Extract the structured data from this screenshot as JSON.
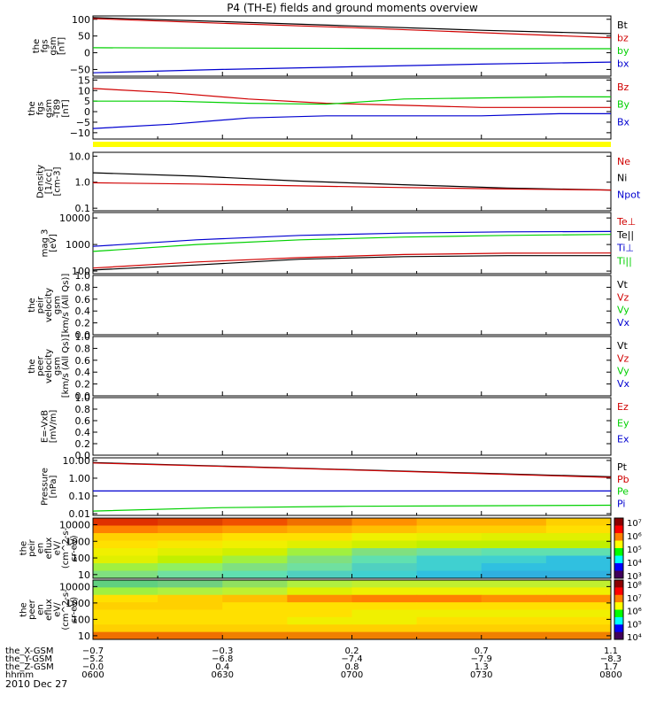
{
  "title": "P4 (TH-E) fields and ground moments overview",
  "date_label": "2010 Dec 27",
  "colors": {
    "black": "#000000",
    "red": "#d00000",
    "green": "#00d000",
    "blue": "#0000d0",
    "yellow": "#ffff00"
  },
  "chart_data": [
    {
      "type": "line",
      "ylabel_lines": [
        "the",
        "fgs",
        "gsm",
        "[nT]"
      ],
      "yticks": [
        "100",
        "50",
        "0",
        "−50"
      ],
      "ylim": [
        -70,
        110
      ],
      "legend": [
        {
          "label": "Bt",
          "color": "#000000"
        },
        {
          "label": "bz",
          "color": "#d00000"
        },
        {
          "label": "by",
          "color": "#00d000"
        },
        {
          "label": "bx",
          "color": "#0000d0"
        }
      ],
      "series": [
        {
          "color": "#000000",
          "x": [
            0,
            0.25,
            0.5,
            0.75,
            1
          ],
          "y": [
            105,
            93,
            80,
            67,
            57
          ]
        },
        {
          "color": "#d00000",
          "x": [
            0,
            0.25,
            0.5,
            0.75,
            1
          ],
          "y": [
            102,
            88,
            75,
            60,
            45
          ]
        },
        {
          "color": "#00d000",
          "x": [
            0,
            0.25,
            0.5,
            0.75,
            1
          ],
          "y": [
            15,
            14,
            13,
            12,
            12
          ]
        },
        {
          "color": "#0000d0",
          "x": [
            0,
            0.25,
            0.5,
            0.75,
            1
          ],
          "y": [
            -60,
            -50,
            -42,
            -34,
            -28
          ]
        }
      ]
    },
    {
      "type": "line",
      "ylabel_lines": [
        "the",
        "fgs",
        "gsm",
        "-T89",
        "[nT]"
      ],
      "yticks": [
        "15",
        "10",
        "5",
        "0",
        "−5",
        "−10"
      ],
      "ylim": [
        -13,
        16
      ],
      "legend": [
        {
          "label": "Bz",
          "color": "#d00000"
        },
        {
          "label": "By",
          "color": "#00d000"
        },
        {
          "label": "Bx",
          "color": "#0000d0"
        }
      ],
      "series": [
        {
          "color": "#d00000",
          "x": [
            0,
            0.15,
            0.3,
            0.45,
            0.6,
            0.75,
            0.9,
            1
          ],
          "y": [
            11,
            9,
            6,
            4,
            3,
            2,
            2,
            2
          ]
        },
        {
          "color": "#00d000",
          "x": [
            0,
            0.15,
            0.3,
            0.45,
            0.6,
            0.75,
            0.9,
            1
          ],
          "y": [
            5,
            5,
            4,
            3.5,
            6,
            6.5,
            7,
            7
          ]
        },
        {
          "color": "#0000d0",
          "x": [
            0,
            0.15,
            0.3,
            0.45,
            0.6,
            0.75,
            0.9,
            1
          ],
          "y": [
            -8,
            -6,
            -3,
            -2,
            -2,
            -2,
            -1,
            -1
          ]
        }
      ]
    },
    {
      "type": "log-line",
      "ylabel_lines": [
        "Density",
        "[1/cc]",
        "[cm-3]"
      ],
      "yticks": [
        "10.0",
        "1.0",
        "0.1"
      ],
      "ylim": [
        0.08,
        14
      ],
      "legend": [
        {
          "label": "Ne",
          "color": "#d00000"
        },
        {
          "label": "Ni",
          "color": "#000000"
        },
        {
          "label": "Npot",
          "color": "#0000d0"
        }
      ],
      "series": [
        {
          "color": "#000000",
          "x": [
            0,
            0.2,
            0.4,
            0.6,
            0.8,
            1
          ],
          "y": [
            2.3,
            1.7,
            1.1,
            0.8,
            0.6,
            0.5
          ]
        },
        {
          "color": "#d00000",
          "x": [
            0,
            0.2,
            0.4,
            0.6,
            0.8,
            1
          ],
          "y": [
            0.95,
            0.85,
            0.72,
            0.62,
            0.55,
            0.5
          ]
        }
      ]
    },
    {
      "type": "log-line",
      "ylabel_lines": [
        "mag 3",
        "[eV]"
      ],
      "yticks": [
        "10000",
        "1000",
        "100"
      ],
      "ylim": [
        80,
        16000
      ],
      "legend": [
        {
          "label": "Te⊥",
          "color": "#d00000"
        },
        {
          "label": "Te||",
          "color": "#000000"
        },
        {
          "label": "Ti⊥",
          "color": "#0000d0"
        },
        {
          "label": "Ti||",
          "color": "#00d000"
        }
      ],
      "series": [
        {
          "color": "#0000d0",
          "x": [
            0,
            0.2,
            0.4,
            0.6,
            0.8,
            1
          ],
          "y": [
            850,
            1500,
            2200,
            2700,
            3000,
            3100
          ]
        },
        {
          "color": "#00d000",
          "x": [
            0,
            0.2,
            0.4,
            0.6,
            0.8,
            1
          ],
          "y": [
            550,
            1000,
            1500,
            1900,
            2200,
            2400
          ]
        },
        {
          "color": "#d00000",
          "x": [
            0,
            0.2,
            0.4,
            0.6,
            0.8,
            1
          ],
          "y": [
            130,
            220,
            320,
            420,
            470,
            480
          ]
        },
        {
          "color": "#000000",
          "x": [
            0,
            0.2,
            0.4,
            0.6,
            0.8,
            1
          ],
          "y": [
            110,
            170,
            280,
            350,
            380,
            380
          ]
        }
      ]
    },
    {
      "type": "line",
      "ylabel_lines": [
        "the",
        "peir",
        "velocity",
        "gsm",
        "[km/s (All Qs)]"
      ],
      "yticks": [
        "1.0",
        "0.8",
        "0.6",
        "0.4",
        "0.2",
        "0.0"
      ],
      "ylim": [
        0,
        1
      ],
      "legend": [
        {
          "label": "Vt",
          "color": "#000000"
        },
        {
          "label": "Vz",
          "color": "#d00000"
        },
        {
          "label": "Vy",
          "color": "#00d000"
        },
        {
          "label": "Vx",
          "color": "#0000d0"
        }
      ],
      "series": []
    },
    {
      "type": "line",
      "ylabel_lines": [
        "the",
        "peer",
        "velocity",
        "gsm",
        "[km/s (All Qs)]"
      ],
      "yticks": [
        "1.0",
        "0.8",
        "0.6",
        "0.4",
        "0.2",
        "0.0"
      ],
      "ylim": [
        0,
        1
      ],
      "legend": [
        {
          "label": "Vt",
          "color": "#000000"
        },
        {
          "label": "Vz",
          "color": "#d00000"
        },
        {
          "label": "Vy",
          "color": "#00d000"
        },
        {
          "label": "Vx",
          "color": "#0000d0"
        }
      ],
      "series": []
    },
    {
      "type": "line",
      "ylabel_lines": [
        "E=-VxB",
        "[mV/m]"
      ],
      "yticks": [
        "1.0",
        "0.8",
        "0.6",
        "0.4",
        "0.2",
        "0.0"
      ],
      "ylim": [
        0,
        1
      ],
      "legend": [
        {
          "label": "Ez",
          "color": "#d00000"
        },
        {
          "label": "Ey",
          "color": "#00d000"
        },
        {
          "label": "Ex",
          "color": "#0000d0"
        }
      ],
      "series": []
    },
    {
      "type": "log-line",
      "ylabel_lines": [
        "Pressure",
        "[nPa]"
      ],
      "yticks": [
        "10.00",
        "1.00",
        "0.10",
        "0.01"
      ],
      "ylim": [
        0.008,
        14
      ],
      "legend": [
        {
          "label": "Pt",
          "color": "#000000"
        },
        {
          "label": "Pb",
          "color": "#d00000"
        },
        {
          "label": "Pe",
          "color": "#00d000"
        },
        {
          "label": "Pi",
          "color": "#0000d0"
        }
      ],
      "series": [
        {
          "color": "#000000",
          "x": [
            0,
            0.25,
            0.5,
            0.75,
            1
          ],
          "y": [
            7.5,
            4.8,
            3.0,
            1.9,
            1.2
          ]
        },
        {
          "color": "#d00000",
          "x": [
            0,
            0.25,
            0.5,
            0.75,
            1
          ],
          "y": [
            7.2,
            4.6,
            2.9,
            1.8,
            1.1
          ]
        },
        {
          "color": "#0000d0",
          "x": [
            0,
            0.25,
            0.5,
            0.75,
            1
          ],
          "y": [
            0.19,
            0.19,
            0.19,
            0.19,
            0.19
          ]
        },
        {
          "color": "#00d000",
          "x": [
            0,
            0.25,
            0.5,
            0.75,
            1
          ],
          "y": [
            0.014,
            0.022,
            0.026,
            0.028,
            0.03
          ]
        }
      ]
    },
    {
      "type": "heatmap",
      "ylabel_lines": [
        "the",
        "peir",
        "en",
        "eflux",
        "eV/",
        "(cm^2-s-",
        "sr-eV)"
      ],
      "yticks": [
        "10000",
        "1000",
        "100",
        "10"
      ],
      "ylim": [
        6,
        25000
      ],
      "colorbar_ticks": [
        "10⁷",
        "10⁶",
        "10⁵",
        "10⁴",
        "10³"
      ],
      "cells": [
        [
          "#e03000",
          "#e04000",
          "#f05000",
          "#f07000",
          "#ff9000",
          "#ffb000",
          "#ffb000",
          "#ffd000"
        ],
        [
          "#ff8000",
          "#ff9000",
          "#ffa000",
          "#ffb000",
          "#ffc000",
          "#ffd000",
          "#ffd000",
          "#ffe000"
        ],
        [
          "#ffd000",
          "#ffd000",
          "#ffe000",
          "#ffe000",
          "#f0f000",
          "#e8f000",
          "#e0f000",
          "#e0f000"
        ],
        [
          "#ffe000",
          "#f8e800",
          "#f0f000",
          "#e0f000",
          "#d0f000",
          "#c0f000",
          "#c0f000",
          "#c0f000"
        ],
        [
          "#f0f000",
          "#e0f000",
          "#d0f000",
          "#a0f040",
          "#80e080",
          "#70e0a0",
          "#60e0b0",
          "#60e0b0"
        ],
        [
          "#e0f000",
          "#c0f000",
          "#a0f040",
          "#80e080",
          "#60e0b0",
          "#40d0d0",
          "#40d0d0",
          "#30c0e0"
        ],
        [
          "#a0f040",
          "#90f060",
          "#80e080",
          "#70e0a0",
          "#50d0c0",
          "#40d0d0",
          "#30c0e0",
          "#30c0e0"
        ],
        [
          "#80e080",
          "#70e0a0",
          "#60e0b0",
          "#50d0c0",
          "#40d0d0",
          "#30c0e0",
          "#30b0e0",
          "#30b0e0"
        ]
      ]
    },
    {
      "type": "heatmap",
      "ylabel_lines": [
        "the",
        "peer",
        "en",
        "eflux",
        "eV/",
        "(cm^2-s-",
        "sr-eV)"
      ],
      "yticks": [
        "10000",
        "1000",
        "100",
        "10"
      ],
      "ylim": [
        6,
        25000
      ],
      "colorbar_ticks": [
        "10⁸",
        "10⁷",
        "10⁶",
        "10⁵",
        "10⁴"
      ],
      "cells": [
        [
          "#60d080",
          "#70d080",
          "#90e060",
          "#b0f040",
          "#c0f030",
          "#c0f030",
          "#c0f030",
          "#c0f030"
        ],
        [
          "#a0f040",
          "#b0f040",
          "#c0f030",
          "#e0f000",
          "#f0f000",
          "#f0f000",
          "#f0f000",
          "#f0f000"
        ],
        [
          "#ffe000",
          "#ffd000",
          "#ffc000",
          "#ff9000",
          "#ff8000",
          "#ff8000",
          "#ff9000",
          "#ff9000"
        ],
        [
          "#ffd000",
          "#ffd000",
          "#ffe000",
          "#ffe000",
          "#ffe000",
          "#ffe000",
          "#ffe000",
          "#ffe000"
        ],
        [
          "#ffe000",
          "#ffe000",
          "#ffe000",
          "#ffe000",
          "#f0f000",
          "#f0f000",
          "#f0f000",
          "#f0f000"
        ],
        [
          "#ffe000",
          "#ffe000",
          "#ffe000",
          "#f0f000",
          "#f0f000",
          "#ffe000",
          "#ffe000",
          "#ffe000"
        ],
        [
          "#ffd000",
          "#ffd000",
          "#ffd000",
          "#ffd000",
          "#ffd000",
          "#ffd000",
          "#ffd000",
          "#ffd000"
        ],
        [
          "#f07000",
          "#f07000",
          "#f08000",
          "#f08000",
          "#f08000",
          "#f08000",
          "#f08000",
          "#f08000"
        ]
      ]
    }
  ],
  "xaxis": {
    "row_labels": [
      "the_X-GSM",
      "the_Y-GSM",
      "the_Z-GSM",
      "hhmm"
    ],
    "columns": [
      [
        "−0.7",
        "−5.2",
        "−0.0",
        "0600"
      ],
      [
        "−0.3",
        "−6.8",
        "0.4",
        "0630"
      ],
      [
        "0.2",
        "−7.4",
        "0.8",
        "0700"
      ],
      [
        "0.7",
        "−7.9",
        "1.3",
        "0730"
      ],
      [
        "1.1",
        "−8.3",
        "1.7",
        "0800"
      ]
    ]
  }
}
